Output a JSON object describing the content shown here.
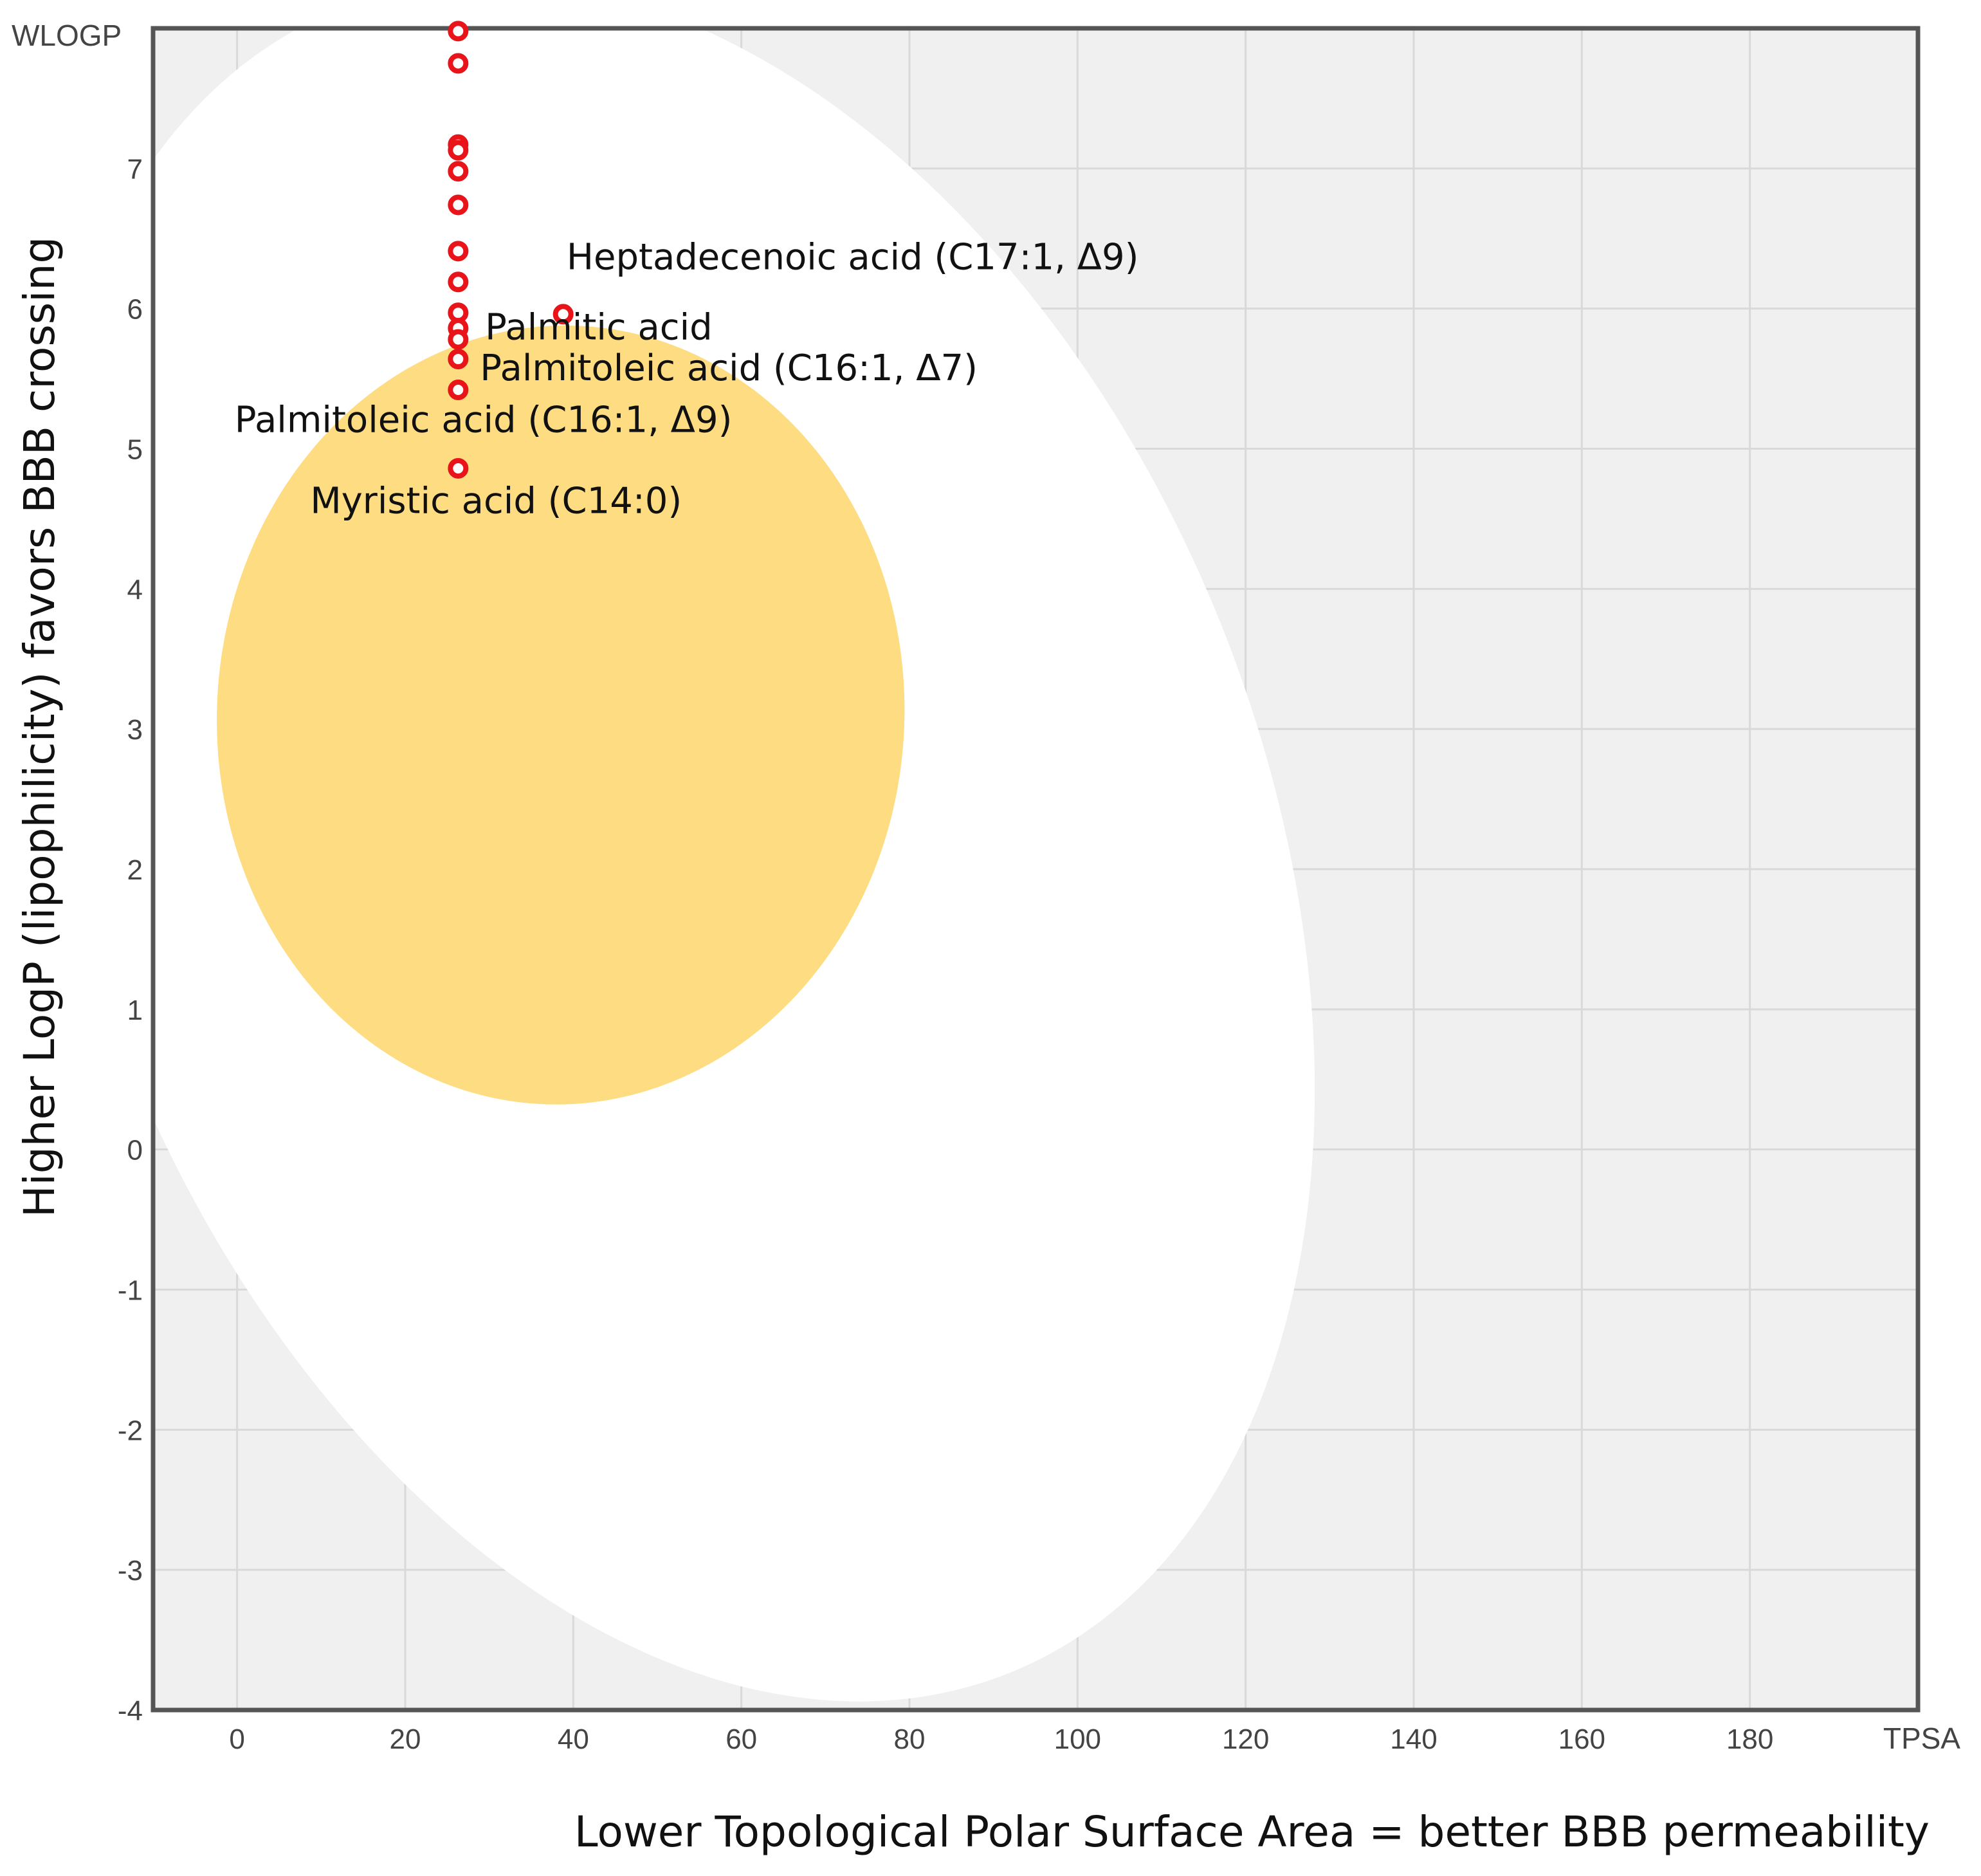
{
  "chart_data": {
    "type": "scatter",
    "xlabel": "TPSA",
    "ylabel": "WLOGP",
    "x_axis_title": "Lower Topological Polar Surface Area = better BBB permeability",
    "y_axis_title": "Higher LogP (lipophilicity) favors BBB crossing",
    "xlim": [
      -10,
      200
    ],
    "ylim": [
      -4,
      8
    ],
    "xticks": [
      0,
      20,
      40,
      60,
      80,
      100,
      120,
      140,
      160,
      180
    ],
    "yticks": [
      -4,
      -3,
      -2,
      -1,
      0,
      1,
      2,
      3,
      4,
      5,
      6,
      7
    ],
    "grid": true,
    "regions": [
      {
        "name": "white-region",
        "color": "#ffffff",
        "cx": 52,
        "cy": 2.2,
        "rx": 70,
        "ry": 6.4,
        "rotation_deg": -22
      },
      {
        "name": "yolk-region",
        "color": "#fddc82",
        "cx": 38.5,
        "cy": 3.1,
        "rx": 40.9,
        "ry": 2.78,
        "rotation_deg": 3
      }
    ],
    "points": [
      {
        "x": 26.3,
        "y": 7.98
      },
      {
        "x": 26.3,
        "y": 7.75
      },
      {
        "x": 26.3,
        "y": 7.17
      },
      {
        "x": 26.3,
        "y": 7.13
      },
      {
        "x": 26.3,
        "y": 6.98
      },
      {
        "x": 26.3,
        "y": 6.74
      },
      {
        "x": 26.3,
        "y": 6.41
      },
      {
        "x": 26.3,
        "y": 6.19
      },
      {
        "x": 26.3,
        "y": 5.97
      },
      {
        "x": 26.3,
        "y": 5.86
      },
      {
        "x": 26.3,
        "y": 5.78
      },
      {
        "x": 26.3,
        "y": 5.64
      },
      {
        "x": 26.3,
        "y": 5.42
      },
      {
        "x": 26.3,
        "y": 4.86
      },
      {
        "x": 38.8,
        "y": 5.96
      }
    ],
    "point_color": "#e8141a",
    "annotations": [
      {
        "text": "Heptadecenoic acid (C17:1, Δ9)",
        "x": 39.2,
        "y": 6.28
      },
      {
        "text": "Palmitic acid",
        "x": 29.5,
        "y": 5.78
      },
      {
        "text": "Palmitoleic acid (C16:1, Δ7)",
        "x": 28.9,
        "y": 5.49
      },
      {
        "text": "Palmitoleic acid (C16:1, Δ9)",
        "x": -0.3,
        "y": 5.12
      },
      {
        "text": "Myristic acid (C14:0)",
        "x": 8.7,
        "y": 4.54
      }
    ]
  }
}
